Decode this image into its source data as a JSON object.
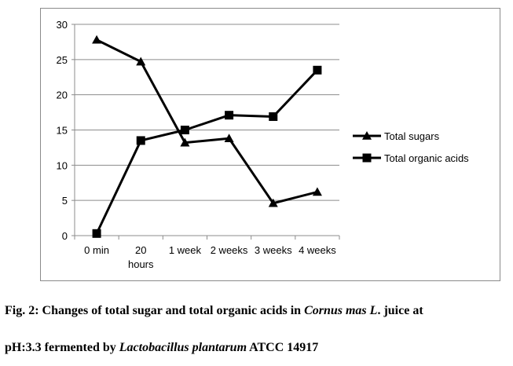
{
  "chart_data": {
    "type": "line",
    "categories": [
      "0 min",
      "20 hours",
      "1 week",
      "2 weeks",
      "3 weeks",
      "4 weeks"
    ],
    "category_lines": [
      [
        "0 min"
      ],
      [
        "20",
        "hours"
      ],
      [
        "1 week"
      ],
      [
        "2 weeks"
      ],
      [
        "3 weeks"
      ],
      [
        "4 weeks"
      ]
    ],
    "series": [
      {
        "name": "Total sugars",
        "marker": "triangle",
        "values": [
          27.8,
          24.7,
          13.2,
          13.8,
          4.6,
          6.2
        ]
      },
      {
        "name": "Total organic acids",
        "marker": "square",
        "values": [
          0.3,
          13.5,
          15.0,
          17.1,
          16.9,
          23.5
        ]
      }
    ],
    "ylim": [
      0,
      30
    ],
    "yticks": [
      0,
      5,
      10,
      15,
      20,
      25,
      30
    ],
    "grid": true,
    "legend": "right",
    "title": "",
    "xlabel": "",
    "ylabel": ""
  },
  "caption": {
    "line1_a": "Fig. 2: Changes of total sugar and total organic acids in ",
    "line1_b": "Cornus mas L",
    "line1_c": ". juice at",
    "line2_a": "pH:3.3 fermented by ",
    "line2_b": "Lactobacillus plantarum",
    "line2_c": " ATCC 14917"
  },
  "colors": {
    "series": "#000000",
    "grid": "#8c8c8c",
    "axis": "#8c8c8c",
    "frame": "#8a8a8a"
  }
}
